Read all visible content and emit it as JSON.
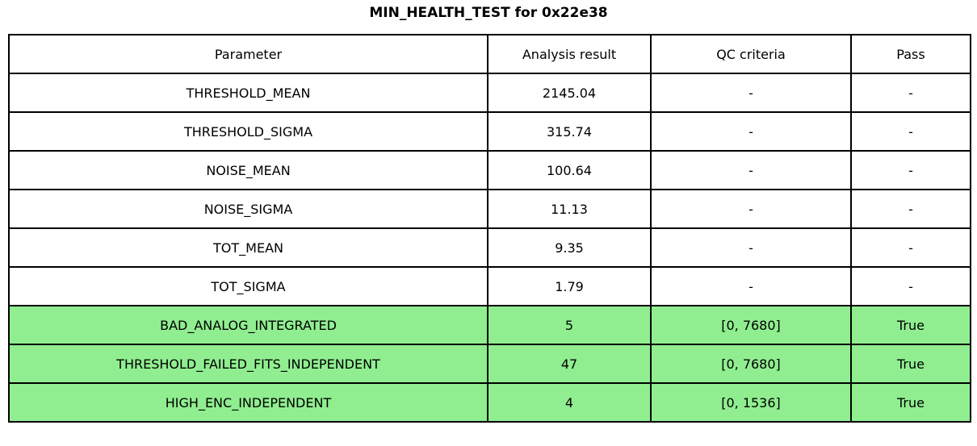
{
  "title": "MIN_HEALTH_TEST for 0x22e38",
  "colors": {
    "highlight_green": "#90EE90",
    "row_white": "#ffffff",
    "border": "#000000",
    "text": "#000000"
  },
  "table": {
    "headers": [
      "Parameter",
      "Analysis result",
      "QC criteria",
      "Pass"
    ],
    "rows": [
      {
        "parameter": "THRESHOLD_MEAN",
        "analysis_result": "2145.04",
        "qc_criteria": "-",
        "pass": "-",
        "highlighted": false
      },
      {
        "parameter": "THRESHOLD_SIGMA",
        "analysis_result": "315.74",
        "qc_criteria": "-",
        "pass": "-",
        "highlighted": false
      },
      {
        "parameter": "NOISE_MEAN",
        "analysis_result": "100.64",
        "qc_criteria": "-",
        "pass": "-",
        "highlighted": false
      },
      {
        "parameter": "NOISE_SIGMA",
        "analysis_result": "11.13",
        "qc_criteria": "-",
        "pass": "-",
        "highlighted": false
      },
      {
        "parameter": "TOT_MEAN",
        "analysis_result": "9.35",
        "qc_criteria": "-",
        "pass": "-",
        "highlighted": false
      },
      {
        "parameter": "TOT_SIGMA",
        "analysis_result": "1.79",
        "qc_criteria": "-",
        "pass": "-",
        "highlighted": false
      },
      {
        "parameter": "BAD_ANALOG_INTEGRATED",
        "analysis_result": "5",
        "qc_criteria": "[0, 7680]",
        "pass": "True",
        "highlighted": true
      },
      {
        "parameter": "THRESHOLD_FAILED_FITS_INDEPENDENT",
        "analysis_result": "47",
        "qc_criteria": "[0, 7680]",
        "pass": "True",
        "highlighted": true
      },
      {
        "parameter": "HIGH_ENC_INDEPENDENT",
        "analysis_result": "4",
        "qc_criteria": "[0, 1536]",
        "pass": "True",
        "highlighted": true
      }
    ]
  }
}
